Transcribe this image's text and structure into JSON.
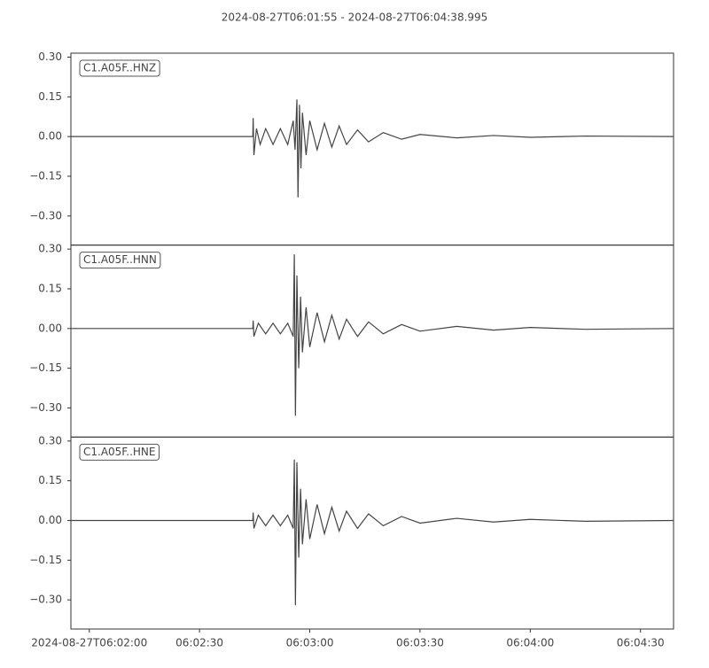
{
  "chart_data": [
    {
      "type": "line",
      "title": "2024-08-27T06:01:55  -  2024-08-27T06:04:38.995",
      "xlim": [
        "2024-08-27T06:01:55",
        "2024-08-27T06:04:38.995"
      ],
      "ylim": [
        -0.41,
        0.315
      ],
      "yticks": [
        {
          "value": 0.3,
          "label": "0.30"
        },
        {
          "value": 0.15,
          "label": "0.15"
        },
        {
          "value": 0,
          "label": "0.00"
        },
        {
          "value": -0.15,
          "label": "−0.15"
        },
        {
          "value": -0.3,
          "label": "−0.30"
        }
      ],
      "x": [
        "06:01:55.0",
        "06:02:44.5",
        "06:02:44.6",
        "06:02:44.8",
        "06:02:45.5",
        "06:02:46.5",
        "06:02:48.0",
        "06:02:50.0",
        "06:02:52.0",
        "06:02:54.0",
        "06:02:55.5",
        "06:02:56.0",
        "06:02:56.5",
        "06:02:56.8",
        "06:02:57.2",
        "06:02:57.6",
        "06:02:58.0",
        "06:02:59.0",
        "06:03:00.0",
        "06:03:02.0",
        "06:03:04.0",
        "06:03:06.0",
        "06:03:08.0",
        "06:03:10.0",
        "06:03:13.0",
        "06:03:16.0",
        "06:03:20.0",
        "06:03:25.0",
        "06:03:30.0",
        "06:03:40.0",
        "06:03:50.0",
        "06:04:00.0",
        "06:04:15.0",
        "06:04:38.995"
      ],
      "series": [
        {
          "name": "C1.A05F..HNZ",
          "color": "#444444",
          "values": [
            0,
            0,
            0.07,
            -0.07,
            0.03,
            -0.03,
            0.03,
            -0.03,
            0.03,
            -0.03,
            0.06,
            -0.05,
            0.14,
            -0.23,
            0.12,
            -0.12,
            0.09,
            -0.07,
            0.06,
            -0.05,
            0.05,
            -0.04,
            0.04,
            -0.03,
            0.025,
            -0.02,
            0.015,
            -0.01,
            0.008,
            -0.005,
            0.004,
            -0.003,
            0.002,
            0
          ]
        }
      ]
    },
    {
      "type": "line",
      "xlim": [
        "2024-08-27T06:01:55",
        "2024-08-27T06:04:38.995"
      ],
      "ylim": [
        -0.41,
        0.315
      ],
      "yticks": [
        {
          "value": 0.3,
          "label": "0.30"
        },
        {
          "value": 0.15,
          "label": "0.15"
        },
        {
          "value": 0,
          "label": "0.00"
        },
        {
          "value": -0.15,
          "label": "−0.15"
        },
        {
          "value": -0.3,
          "label": "−0.30"
        }
      ],
      "x": [
        "06:01:55.0",
        "06:02:44.5",
        "06:02:44.6",
        "06:02:44.8",
        "06:02:46.0",
        "06:02:48.0",
        "06:02:50.0",
        "06:02:52.0",
        "06:02:54.0",
        "06:02:55.5",
        "06:02:55.8",
        "06:02:56.1",
        "06:02:56.5",
        "06:02:57.0",
        "06:02:57.5",
        "06:02:58.0",
        "06:02:59.0",
        "06:03:00.0",
        "06:03:02.0",
        "06:03:04.0",
        "06:03:06.0",
        "06:03:08.0",
        "06:03:10.0",
        "06:03:13.0",
        "06:03:16.0",
        "06:03:20.0",
        "06:03:25.0",
        "06:03:30.0",
        "06:03:40.0",
        "06:03:50.0",
        "06:04:00.0",
        "06:04:15.0",
        "06:04:38.995"
      ],
      "series": [
        {
          "name": "C1.A05F..HNN",
          "color": "#444444",
          "values": [
            0,
            0,
            0.03,
            -0.03,
            0.02,
            -0.02,
            0.02,
            -0.02,
            0.02,
            -0.03,
            0.28,
            -0.33,
            0.2,
            -0.15,
            0.12,
            -0.09,
            0.08,
            -0.07,
            0.06,
            -0.05,
            0.05,
            -0.04,
            0.035,
            -0.03,
            0.025,
            -0.02,
            0.015,
            -0.01,
            0.008,
            -0.006,
            0.004,
            -0.003,
            0
          ]
        }
      ]
    },
    {
      "type": "line",
      "xlim": [
        "2024-08-27T06:01:55",
        "2024-08-27T06:04:38.995"
      ],
      "ylim": [
        -0.41,
        0.315
      ],
      "yticks": [
        {
          "value": 0.3,
          "label": "0.30"
        },
        {
          "value": 0.15,
          "label": "0.15"
        },
        {
          "value": 0,
          "label": "0.00"
        },
        {
          "value": -0.15,
          "label": "−0.15"
        },
        {
          "value": -0.3,
          "label": "−0.30"
        }
      ],
      "xticks": [
        "2024-08-27T06:02:00",
        "06:02:30",
        "06:03:00",
        "06:03:30",
        "06:04:00",
        "06:04:30"
      ],
      "x": [
        "06:01:55.0",
        "06:02:44.5",
        "06:02:44.6",
        "06:02:44.8",
        "06:02:46.0",
        "06:02:48.0",
        "06:02:50.0",
        "06:02:52.0",
        "06:02:54.0",
        "06:02:55.5",
        "06:02:55.8",
        "06:02:56.1",
        "06:02:56.5",
        "06:02:57.0",
        "06:02:57.5",
        "06:02:58.0",
        "06:02:59.0",
        "06:03:00.0",
        "06:03:02.0",
        "06:03:04.0",
        "06:03:06.0",
        "06:03:08.0",
        "06:03:10.0",
        "06:03:13.0",
        "06:03:16.0",
        "06:03:20.0",
        "06:03:25.0",
        "06:03:30.0",
        "06:03:40.0",
        "06:03:50.0",
        "06:04:00.0",
        "06:04:15.0",
        "06:04:38.995"
      ],
      "series": [
        {
          "name": "C1.A05F..HNE",
          "color": "#444444",
          "values": [
            0,
            0,
            0.03,
            -0.03,
            0.02,
            -0.02,
            0.02,
            -0.02,
            0.02,
            -0.03,
            0.23,
            -0.32,
            0.22,
            -0.14,
            0.12,
            -0.09,
            0.08,
            -0.07,
            0.06,
            -0.05,
            0.05,
            -0.04,
            0.035,
            -0.03,
            0.025,
            -0.02,
            0.015,
            -0.01,
            0.008,
            -0.006,
            0.004,
            -0.003,
            0
          ]
        }
      ]
    }
  ]
}
